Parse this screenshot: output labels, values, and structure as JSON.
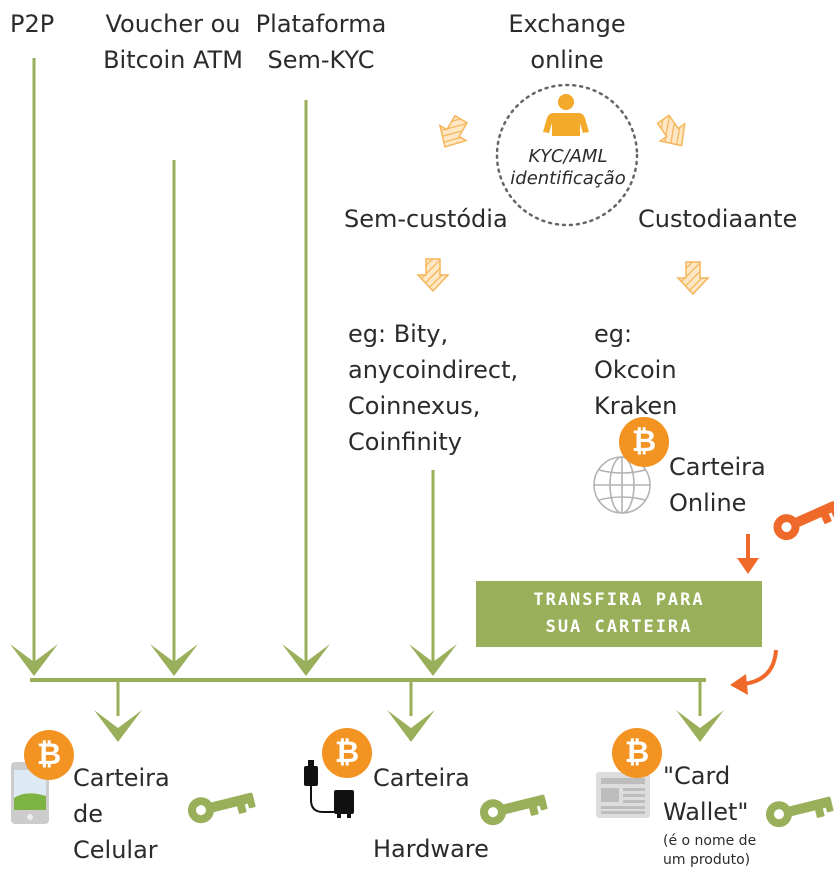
{
  "sources": {
    "p2p": "P2P",
    "voucher": [
      "Voucher ou",
      "Bitcoin ATM"
    ],
    "platform": [
      "Plataforma",
      "Sem-KYC"
    ],
    "exchange": [
      "Exchange",
      "online"
    ]
  },
  "kyc": {
    "line1": "KYC/AML",
    "line2": "identificação",
    "icon": "person-icon"
  },
  "branches": {
    "noncustodial": "Sem-custódia",
    "custodial": "Custodiaante"
  },
  "examples": {
    "noncustodial": [
      "eg: Bity,",
      "anycoindirect,",
      "Coinnexus,",
      "Coinfinity"
    ],
    "custodial": [
      "eg:",
      "Okcoin",
      "Kraken"
    ]
  },
  "online_wallet": {
    "line1": "Carteira",
    "line2": "Online",
    "icon": "globe-icon",
    "coin": "₿"
  },
  "transfer_banner": {
    "line1": "TRANSFIRA PARA",
    "line2": "SUA CARTEIRA"
  },
  "wallets": {
    "mobile": {
      "line1": "Carteira",
      "line2": "de",
      "line3": "Celular",
      "icon": "phone-icon",
      "coin": "₿"
    },
    "hardware": {
      "line1": "Carteira",
      "line2": "Hardware",
      "icon": "usb-device-icon",
      "coin": "₿"
    },
    "card": {
      "line1": "\"Card",
      "line2": "Wallet\"",
      "note1": "(é o nome de",
      "note2": "um produto)",
      "icon": "newspaper-icon",
      "coin": "₿"
    }
  },
  "colors": {
    "green": "#9aaf5a",
    "orange": "#f39321",
    "key_orange": "#ef6a2a",
    "text": "#2b2b2b",
    "hatch": "#f5b55a",
    "gray": "#c8c8c8"
  }
}
